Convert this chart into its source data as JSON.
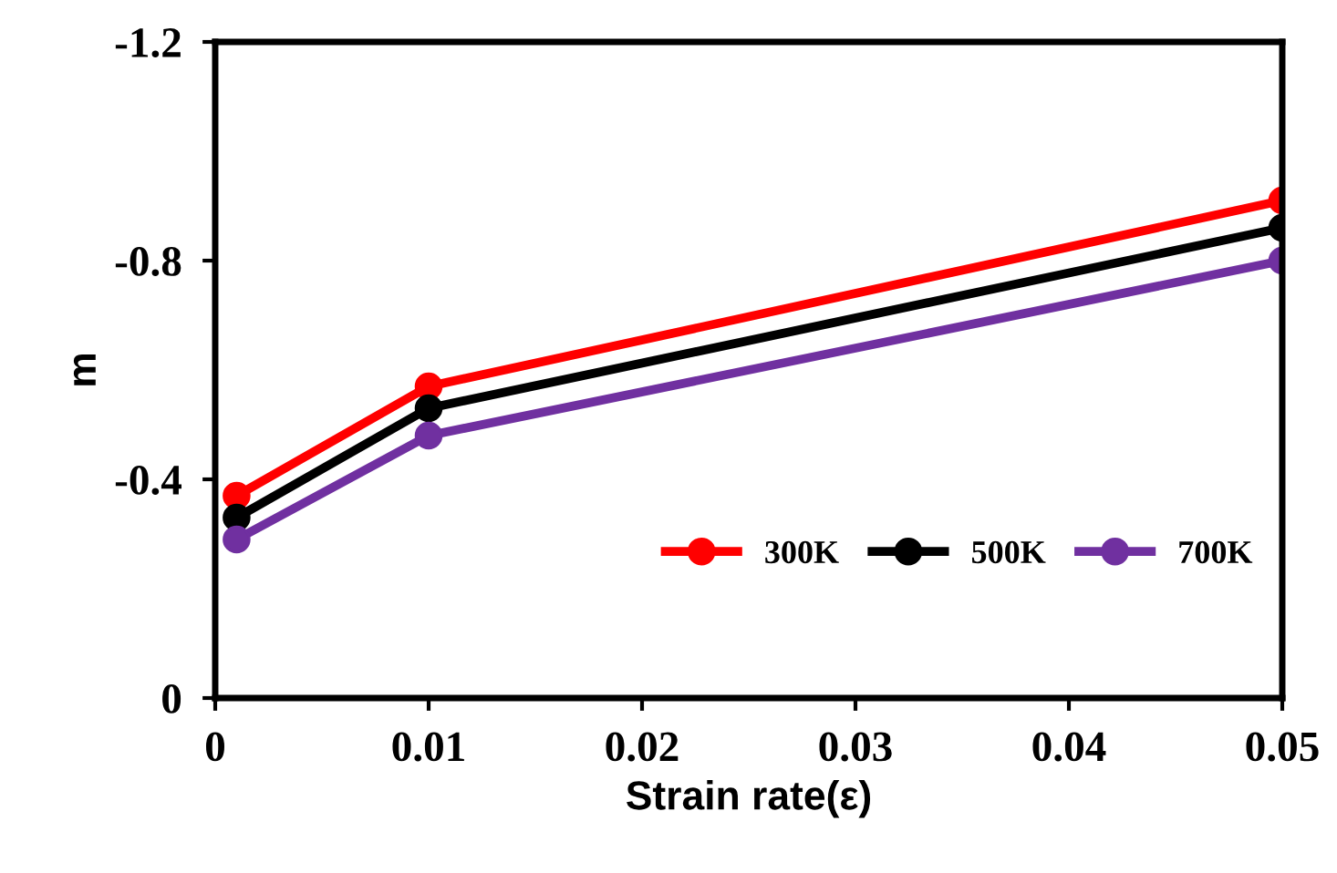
{
  "chart_data": {
    "type": "line",
    "xlabel": "Strain rate(ε)",
    "ylabel": "m",
    "x": [
      0.001,
      0.01,
      0.05
    ],
    "series": [
      {
        "name": "300K",
        "color": "#ff0000",
        "values": [
          -0.37,
          -0.57,
          -0.91
        ]
      },
      {
        "name": "500K",
        "color": "#000000",
        "values": [
          -0.33,
          -0.53,
          -0.86
        ]
      },
      {
        "name": "700K",
        "color": "#7030a0",
        "values": [
          -0.29,
          -0.48,
          -0.8
        ]
      }
    ],
    "xlim": [
      0,
      0.05
    ],
    "ylim": [
      0,
      -1.2
    ],
    "xticks": [
      0,
      0.01,
      0.02,
      0.03,
      0.04,
      0.05
    ],
    "yticks": [
      0,
      -0.4,
      -0.8,
      -1.2
    ],
    "grid": false,
    "legend": "bottom right",
    "marker": "circle",
    "line_style": "solid"
  }
}
